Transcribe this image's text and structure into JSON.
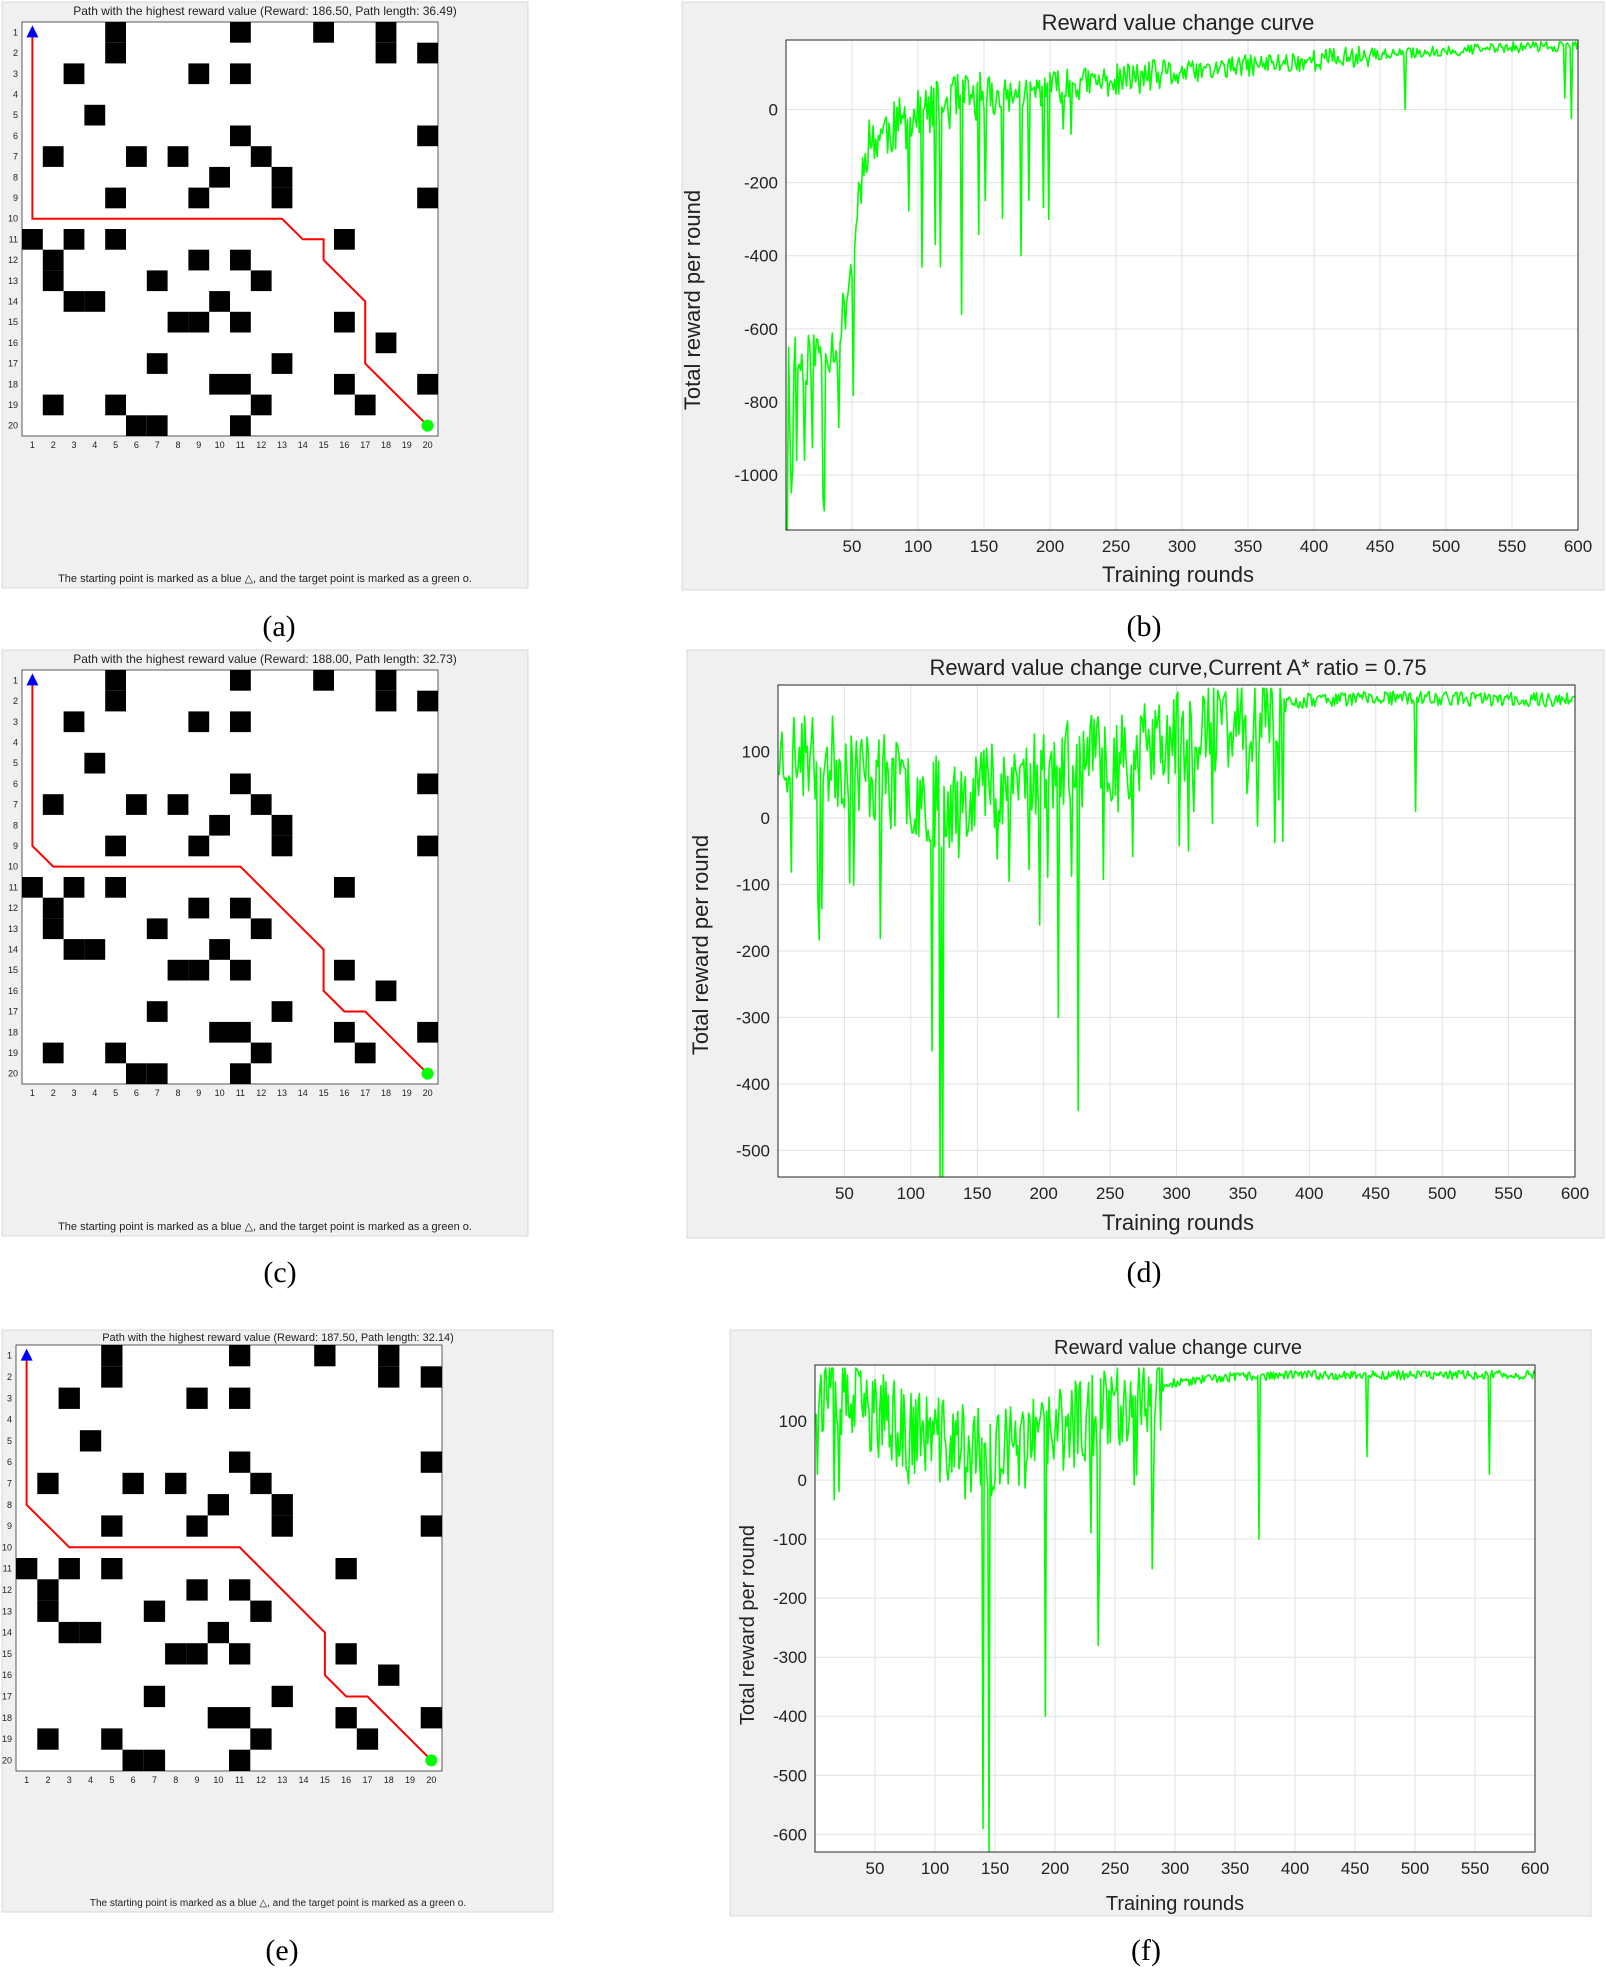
{
  "panels": [
    {
      "id": "a",
      "label": "(a)",
      "type": "grid",
      "title": "Path with the highest reward value (Reward: 186.50, Path length: 36.49)",
      "xlabel": "The starting point is marked as a blue △, and the target point is marked as a green o.",
      "path": [
        [
          1,
          1
        ],
        [
          1,
          10
        ],
        [
          13,
          10
        ],
        [
          14,
          11
        ],
        [
          15,
          11
        ],
        [
          15,
          12
        ],
        [
          17,
          14
        ],
        [
          17,
          17
        ],
        [
          20,
          20
        ]
      ]
    },
    {
      "id": "b",
      "label": "(b)",
      "type": "line",
      "title": "Reward value change curve",
      "xlabel": "Training rounds",
      "ylabel": "Total reward per round",
      "xlim": [
        0,
        600
      ],
      "ylim": [
        -1150,
        190
      ],
      "xticks": [
        50,
        100,
        150,
        200,
        250,
        300,
        350,
        400,
        450,
        500,
        550,
        600
      ],
      "yticks": [
        -1000,
        -800,
        -600,
        -400,
        -200,
        0
      ],
      "color": "#00ff00",
      "seed": 11
    },
    {
      "id": "c",
      "label": "(c)",
      "type": "grid",
      "title": "Path with the highest reward value (Reward: 188.00, Path length: 32.73)",
      "xlabel": "The starting point is marked as a blue △, and the target point is marked as a green o.",
      "path": [
        [
          1,
          1
        ],
        [
          1,
          9
        ],
        [
          2,
          10
        ],
        [
          11,
          10
        ],
        [
          15,
          14
        ],
        [
          15,
          16
        ],
        [
          16,
          17
        ],
        [
          17,
          17
        ],
        [
          20,
          20
        ]
      ]
    },
    {
      "id": "d",
      "label": "(d)",
      "type": "line",
      "title": "Reward value change curve,Current A* ratio = 0.75",
      "xlabel": "Training rounds",
      "ylabel": "Total reward per round",
      "xlim": [
        0,
        600
      ],
      "ylim": [
        -540,
        200
      ],
      "xticks": [
        50,
        100,
        150,
        200,
        250,
        300,
        350,
        400,
        450,
        500,
        550,
        600
      ],
      "yticks": [
        -500,
        -400,
        -300,
        -200,
        -100,
        0,
        100
      ],
      "color": "#00ff00",
      "seed": 23
    },
    {
      "id": "e",
      "label": "(e)",
      "type": "grid",
      "title": "Path with the highest reward value (Reward: 187.50, Path length: 32.14)",
      "xlabel": "The starting point is marked as a blue △, and the target point is marked as a green o.",
      "path": [
        [
          1,
          1
        ],
        [
          1,
          8
        ],
        [
          3,
          10
        ],
        [
          11,
          10
        ],
        [
          15,
          14
        ],
        [
          15,
          16
        ],
        [
          16,
          17
        ],
        [
          17,
          17
        ],
        [
          20,
          20
        ]
      ]
    },
    {
      "id": "f",
      "label": "(f)",
      "type": "line",
      "title": "Reward value change curve",
      "xlabel": "Training rounds",
      "ylabel": "Total reward per round",
      "xlim": [
        0,
        600
      ],
      "ylim": [
        -630,
        195
      ],
      "xticks": [
        50,
        100,
        150,
        200,
        250,
        300,
        350,
        400,
        450,
        500,
        550,
        600
      ],
      "yticks": [
        -600,
        -500,
        -400,
        -300,
        -200,
        -100,
        0,
        100
      ],
      "color": "#00ff00",
      "seed": 37
    }
  ],
  "grid_map": {
    "size": 20,
    "obstacles": [
      [
        5,
        1
      ],
      [
        11,
        1
      ],
      [
        15,
        1
      ],
      [
        18,
        1
      ],
      [
        5,
        2
      ],
      [
        18,
        2
      ],
      [
        20,
        2
      ],
      [
        3,
        3
      ],
      [
        9,
        3
      ],
      [
        11,
        3
      ],
      [
        4,
        5
      ],
      [
        11,
        6
      ],
      [
        20,
        6
      ],
      [
        2,
        7
      ],
      [
        6,
        7
      ],
      [
        8,
        7
      ],
      [
        12,
        7
      ],
      [
        10,
        8
      ],
      [
        13,
        8
      ],
      [
        5,
        9
      ],
      [
        9,
        9
      ],
      [
        13,
        9
      ],
      [
        20,
        9
      ],
      [
        1,
        11
      ],
      [
        3,
        11
      ],
      [
        5,
        11
      ],
      [
        16,
        11
      ],
      [
        2,
        12
      ],
      [
        9,
        12
      ],
      [
        11,
        12
      ],
      [
        2,
        13
      ],
      [
        7,
        13
      ],
      [
        12,
        13
      ],
      [
        3,
        14
      ],
      [
        4,
        14
      ],
      [
        10,
        14
      ],
      [
        8,
        15
      ],
      [
        9,
        15
      ],
      [
        11,
        15
      ],
      [
        16,
        15
      ],
      [
        18,
        16
      ],
      [
        7,
        17
      ],
      [
        13,
        17
      ],
      [
        10,
        18
      ],
      [
        11,
        18
      ],
      [
        16,
        18
      ],
      [
        20,
        18
      ],
      [
        2,
        19
      ],
      [
        5,
        19
      ],
      [
        12,
        19
      ],
      [
        17,
        19
      ],
      [
        6,
        20
      ],
      [
        7,
        20
      ],
      [
        11,
        20
      ]
    ],
    "start": [
      1,
      1
    ],
    "goal": [
      20,
      20
    ],
    "start_color": "#0000ff",
    "goal_color": "#00ff00",
    "path_color": "#ff0000"
  },
  "chart_data": [
    {
      "type": "line",
      "title": "Reward value change curve",
      "xlabel": "Training rounds",
      "ylabel": "Total reward per round",
      "xlim": [
        0,
        600
      ],
      "ylim": [
        -1150,
        190
      ],
      "grid": true,
      "series": [
        {
          "values_by_round": [
            [
              1,
              -600
            ],
            [
              10,
              -700
            ],
            [
              25,
              -660
            ],
            [
              40,
              -640
            ],
            [
              50,
              -420
            ],
            [
              60,
              -100
            ],
            [
              75,
              -60
            ],
            [
              100,
              -20
            ],
            [
              125,
              20
            ],
            [
              150,
              30
            ],
            [
              175,
              40
            ],
            [
              200,
              60
            ],
            [
              250,
              80
            ],
            [
              300,
              100
            ],
            [
              350,
              120
            ],
            [
              400,
              135
            ],
            [
              450,
              150
            ],
            [
              500,
              160
            ],
            [
              550,
              170
            ],
            [
              600,
              175
            ]
          ]
        }
      ]
    },
    {
      "type": "line",
      "title": "Reward value change curve,Current A* ratio = 0.75",
      "xlabel": "Training rounds",
      "ylabel": "Total reward per round",
      "xlim": [
        0,
        600
      ],
      "ylim": [
        -540,
        200
      ],
      "grid": true,
      "series": [
        {
          "values_by_round": [
            [
              1,
              100
            ],
            [
              50,
              80
            ],
            [
              100,
              40
            ],
            [
              125,
              20
            ],
            [
              150,
              50
            ],
            [
              200,
              70
            ],
            [
              250,
              90
            ],
            [
              300,
              120
            ],
            [
              350,
              150
            ],
            [
              380,
              170
            ],
            [
              400,
              178
            ],
            [
              450,
              180
            ],
            [
              500,
              180
            ],
            [
              550,
              178
            ],
            [
              600,
              178
            ]
          ]
        }
      ]
    },
    {
      "type": "line",
      "title": "Reward value change curve",
      "xlabel": "Training rounds",
      "ylabel": "Total reward per round",
      "xlim": [
        0,
        600
      ],
      "ylim": [
        -630,
        195
      ],
      "grid": true,
      "series": [
        {
          "values_by_round": [
            [
              1,
              150
            ],
            [
              50,
              110
            ],
            [
              100,
              70
            ],
            [
              150,
              40
            ],
            [
              200,
              80
            ],
            [
              250,
              130
            ],
            [
              300,
              165
            ],
            [
              350,
              175
            ],
            [
              400,
              178
            ],
            [
              450,
              178
            ],
            [
              500,
              178
            ],
            [
              550,
              178
            ],
            [
              600,
              178
            ]
          ]
        }
      ]
    }
  ]
}
